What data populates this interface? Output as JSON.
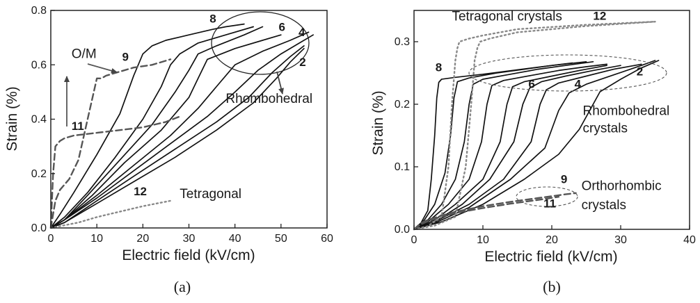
{
  "chart_data": [
    {
      "type": "line",
      "panel_label": "(a)",
      "xlabel": "Electric field (kV/cm)",
      "ylabel": "Strain (%)",
      "xlim": [
        0,
        60
      ],
      "ylim": [
        0,
        0.8
      ],
      "xticks": [
        "0",
        "10",
        "20",
        "30",
        "40",
        "50",
        "60"
      ],
      "yticks": [
        "0.0",
        "0.2",
        "0.4",
        "0.6",
        "0.8"
      ],
      "series": [
        {
          "name": "8",
          "style": "solid",
          "color": "#111111",
          "x": [
            0,
            2,
            5,
            10,
            15,
            18,
            20,
            22,
            25,
            30,
            35,
            38,
            42
          ],
          "y": [
            0,
            0.05,
            0.13,
            0.27,
            0.42,
            0.56,
            0.64,
            0.67,
            0.69,
            0.71,
            0.73,
            0.74,
            0.75
          ]
        },
        {
          "name": "",
          "style": "solid",
          "color": "#111111",
          "x": [
            0,
            3,
            8,
            14,
            20,
            24,
            26,
            28,
            32,
            38,
            44
          ],
          "y": [
            0,
            0.04,
            0.13,
            0.26,
            0.4,
            0.52,
            0.6,
            0.64,
            0.68,
            0.71,
            0.74
          ]
        },
        {
          "name": "",
          "style": "solid",
          "color": "#111111",
          "x": [
            0,
            3,
            8,
            15,
            22,
            27,
            30,
            32,
            36,
            42,
            46
          ],
          "y": [
            0,
            0.03,
            0.12,
            0.25,
            0.38,
            0.5,
            0.58,
            0.64,
            0.67,
            0.71,
            0.74
          ]
        },
        {
          "name": "6",
          "style": "solid",
          "color": "#111111",
          "x": [
            0,
            3,
            9,
            16,
            24,
            30,
            32,
            34,
            40,
            46,
            50
          ],
          "y": [
            0,
            0.03,
            0.12,
            0.24,
            0.36,
            0.48,
            0.55,
            0.62,
            0.66,
            0.69,
            0.71
          ]
        },
        {
          "name": "",
          "style": "solid",
          "color": "#111111",
          "x": [
            0,
            3,
            10,
            18,
            26,
            32,
            36,
            40,
            46,
            52,
            56
          ],
          "y": [
            0,
            0.03,
            0.12,
            0.23,
            0.34,
            0.44,
            0.52,
            0.6,
            0.65,
            0.69,
            0.72
          ]
        },
        {
          "name": "4",
          "style": "solid",
          "color": "#111111",
          "x": [
            0,
            3,
            10,
            18,
            26,
            34,
            40,
            45,
            50,
            54,
            57
          ],
          "y": [
            0,
            0.03,
            0.11,
            0.21,
            0.31,
            0.41,
            0.5,
            0.58,
            0.64,
            0.68,
            0.71
          ]
        },
        {
          "name": "",
          "style": "solid",
          "color": "#111111",
          "x": [
            0,
            3,
            10,
            18,
            27,
            36,
            43,
            48,
            52,
            55
          ],
          "y": [
            0,
            0.02,
            0.1,
            0.19,
            0.29,
            0.39,
            0.48,
            0.57,
            0.63,
            0.67
          ]
        },
        {
          "name": "2",
          "style": "solid",
          "color": "#111111",
          "x": [
            0,
            3,
            10,
            18,
            27,
            36,
            44,
            49,
            52,
            55
          ],
          "y": [
            0,
            0.02,
            0.09,
            0.17,
            0.26,
            0.36,
            0.46,
            0.55,
            0.61,
            0.66
          ]
        },
        {
          "name": "9",
          "style": "dashed",
          "color": "#555555",
          "x": [
            0,
            0.5,
            1,
            2,
            4,
            6,
            8,
            10,
            11,
            12,
            14,
            18,
            22,
            26
          ],
          "y": [
            0,
            0.05,
            0.1,
            0.14,
            0.18,
            0.25,
            0.4,
            0.55,
            0.55,
            0.56,
            0.57,
            0.59,
            0.6,
            0.62
          ]
        },
        {
          "name": "11",
          "style": "dashed",
          "color": "#555555",
          "x": [
            0,
            0.5,
            1,
            1.5,
            2,
            3,
            5,
            10,
            15,
            20,
            25,
            28
          ],
          "y": [
            0,
            0.2,
            0.3,
            0.31,
            0.32,
            0.33,
            0.34,
            0.35,
            0.36,
            0.37,
            0.39,
            0.41
          ]
        },
        {
          "name": "12",
          "style": "dotted",
          "color": "#888888",
          "x": [
            0,
            3,
            6,
            10,
            15,
            20,
            26
          ],
          "y": [
            0,
            0.01,
            0.02,
            0.04,
            0.06,
            0.08,
            0.1
          ]
        }
      ],
      "annotations": [
        {
          "text": "O/M",
          "x": 4.5,
          "y": 0.625
        },
        {
          "text": "Rhombohedral",
          "x": 38,
          "y": 0.46
        },
        {
          "text": "Tetragonal",
          "x": 28,
          "y": 0.11
        },
        {
          "text": "8",
          "x": 34.5,
          "y": 0.755,
          "bold": true
        },
        {
          "text": "6",
          "x": 49.5,
          "y": 0.725,
          "bold": true
        },
        {
          "text": "4",
          "x": 53.8,
          "y": 0.705,
          "bold": true
        },
        {
          "text": "2",
          "x": 54,
          "y": 0.595,
          "bold": true
        },
        {
          "text": "9",
          "x": 15.5,
          "y": 0.615,
          "bold": true
        },
        {
          "text": "11",
          "x": 4.5,
          "y": 0.36,
          "bold": true
        },
        {
          "text": "12",
          "x": 18,
          "y": 0.12,
          "bold": true
        }
      ]
    },
    {
      "type": "line",
      "panel_label": "(b)",
      "xlabel": "Electric field (kV/cm)",
      "ylabel": "Strain (%)",
      "xlim": [
        0,
        40
      ],
      "ylim": [
        0,
        0.35
      ],
      "xticks": [
        "0",
        "10",
        "20",
        "30",
        "40"
      ],
      "yticks": [
        "0.0",
        "0.1",
        "0.2",
        "0.3"
      ],
      "series": [
        {
          "name": "8",
          "style": "solid",
          "color": "#111111",
          "x": [
            0,
            1,
            2,
            2.5,
            3,
            3.3,
            3.6,
            4,
            6,
            10,
            15,
            20,
            23
          ],
          "y": [
            0,
            0.01,
            0.03,
            0.08,
            0.15,
            0.21,
            0.235,
            0.24,
            0.243,
            0.248,
            0.255,
            0.262,
            0.266
          ]
        },
        {
          "name": "",
          "style": "solid",
          "color": "#111111",
          "x": [
            0,
            1.5,
            3,
            4.5,
            5.3,
            5.8,
            6.3,
            8,
            12,
            16,
            20,
            25
          ],
          "y": [
            0,
            0.015,
            0.04,
            0.09,
            0.15,
            0.21,
            0.236,
            0.242,
            0.25,
            0.256,
            0.262,
            0.268
          ]
        },
        {
          "name": "",
          "style": "solid",
          "color": "#111111",
          "x": [
            0,
            2,
            4,
            6,
            7.3,
            8,
            8.6,
            10,
            14,
            18,
            22,
            26
          ],
          "y": [
            0,
            0.015,
            0.04,
            0.08,
            0.14,
            0.2,
            0.232,
            0.24,
            0.248,
            0.256,
            0.262,
            0.268
          ]
        },
        {
          "name": "",
          "style": "solid",
          "color": "#111111",
          "x": [
            0,
            2,
            5,
            8,
            9.8,
            10.6,
            11.3,
            13,
            17,
            21,
            25,
            28
          ],
          "y": [
            0,
            0.012,
            0.04,
            0.08,
            0.14,
            0.2,
            0.23,
            0.238,
            0.246,
            0.254,
            0.26,
            0.264
          ]
        },
        {
          "name": "6",
          "style": "solid",
          "color": "#111111",
          "x": [
            0,
            3,
            6,
            10,
            12.5,
            13.5,
            14.3,
            16,
            20,
            24,
            28
          ],
          "y": [
            0,
            0.015,
            0.04,
            0.08,
            0.14,
            0.2,
            0.228,
            0.236,
            0.245,
            0.254,
            0.262
          ]
        },
        {
          "name": "",
          "style": "solid",
          "color": "#111111",
          "x": [
            0,
            3,
            7,
            11,
            14.5,
            15.8,
            16.8,
            18.5,
            22,
            26,
            30
          ],
          "y": [
            0,
            0.012,
            0.04,
            0.08,
            0.14,
            0.2,
            0.226,
            0.236,
            0.245,
            0.254,
            0.262
          ]
        },
        {
          "name": "4",
          "style": "solid",
          "color": "#111111",
          "x": [
            0,
            3,
            8,
            13,
            17,
            18.3,
            19.2,
            21,
            25,
            29,
            33
          ],
          "y": [
            0,
            0.012,
            0.04,
            0.08,
            0.14,
            0.2,
            0.223,
            0.234,
            0.245,
            0.256,
            0.264
          ]
        },
        {
          "name": "",
          "style": "solid",
          "color": "#111111",
          "x": [
            0,
            3,
            8,
            14,
            19,
            21,
            22.5,
            25,
            29,
            33,
            35
          ],
          "y": [
            0,
            0.01,
            0.035,
            0.08,
            0.13,
            0.19,
            0.218,
            0.232,
            0.247,
            0.262,
            0.27
          ]
        },
        {
          "name": "2",
          "style": "solid",
          "color": "#111111",
          "x": [
            0,
            4,
            10,
            16,
            21,
            24,
            25.5,
            27,
            30,
            33,
            35.5
          ],
          "y": [
            0,
            0.012,
            0.04,
            0.08,
            0.12,
            0.16,
            0.19,
            0.22,
            0.24,
            0.258,
            0.27
          ]
        },
        {
          "name": "9",
          "style": "dashed",
          "color": "#555555",
          "x": [
            0,
            1,
            2,
            4,
            6,
            10,
            14,
            18,
            22,
            23.5
          ],
          "y": [
            0,
            0.01,
            0.015,
            0.022,
            0.028,
            0.037,
            0.044,
            0.05,
            0.056,
            0.058
          ]
        },
        {
          "name": "11",
          "style": "dashed",
          "color": "#555555",
          "x": [
            0,
            1,
            2,
            4,
            6,
            10,
            14,
            18,
            21
          ],
          "y": [
            0,
            0.008,
            0.013,
            0.02,
            0.026,
            0.034,
            0.041,
            0.047,
            0.052
          ]
        },
        {
          "name": "12",
          "style": "dotted",
          "color": "#888888",
          "x": [
            0,
            2,
            4,
            5,
            5.5,
            6,
            6.3,
            6.6,
            8,
            10,
            15,
            25,
            35
          ],
          "y": [
            0,
            0.005,
            0.02,
            0.1,
            0.2,
            0.27,
            0.29,
            0.3,
            0.305,
            0.31,
            0.32,
            0.327,
            0.332
          ]
        },
        {
          "name": "",
          "style": "dotted",
          "color": "#888888",
          "x": [
            0,
            3,
            6,
            7.5,
            8.3,
            8.8,
            9.2,
            9.6,
            11,
            15,
            25,
            35
          ],
          "y": [
            0,
            0.006,
            0.02,
            0.1,
            0.2,
            0.27,
            0.29,
            0.3,
            0.305,
            0.315,
            0.325,
            0.332
          ]
        }
      ],
      "annotations": [
        {
          "text": "Tetragonal crystals",
          "x": 5.5,
          "y": 0.334
        },
        {
          "text": "Rhombohedral",
          "x": 24.5,
          "y": 0.183
        },
        {
          "text": "crystals",
          "x": 24.5,
          "y": 0.155
        },
        {
          "text": "Orthorhombic",
          "x": 24.3,
          "y": 0.063
        },
        {
          "text": "crystals",
          "x": 24.3,
          "y": 0.032
        },
        {
          "text": "12",
          "x": 26,
          "y": 0.335,
          "bold": true
        },
        {
          "text": "8",
          "x": 3.1,
          "y": 0.253,
          "bold": true
        },
        {
          "text": "6",
          "x": 16.6,
          "y": 0.226,
          "bold": true
        },
        {
          "text": "4",
          "x": 23.3,
          "y": 0.226,
          "bold": true
        },
        {
          "text": "2",
          "x": 32.3,
          "y": 0.246,
          "bold": true
        },
        {
          "text": "9",
          "x": 21.3,
          "y": 0.074,
          "bold": true
        },
        {
          "text": "11",
          "x": 18.8,
          "y": 0.035,
          "bold": true
        }
      ]
    }
  ]
}
